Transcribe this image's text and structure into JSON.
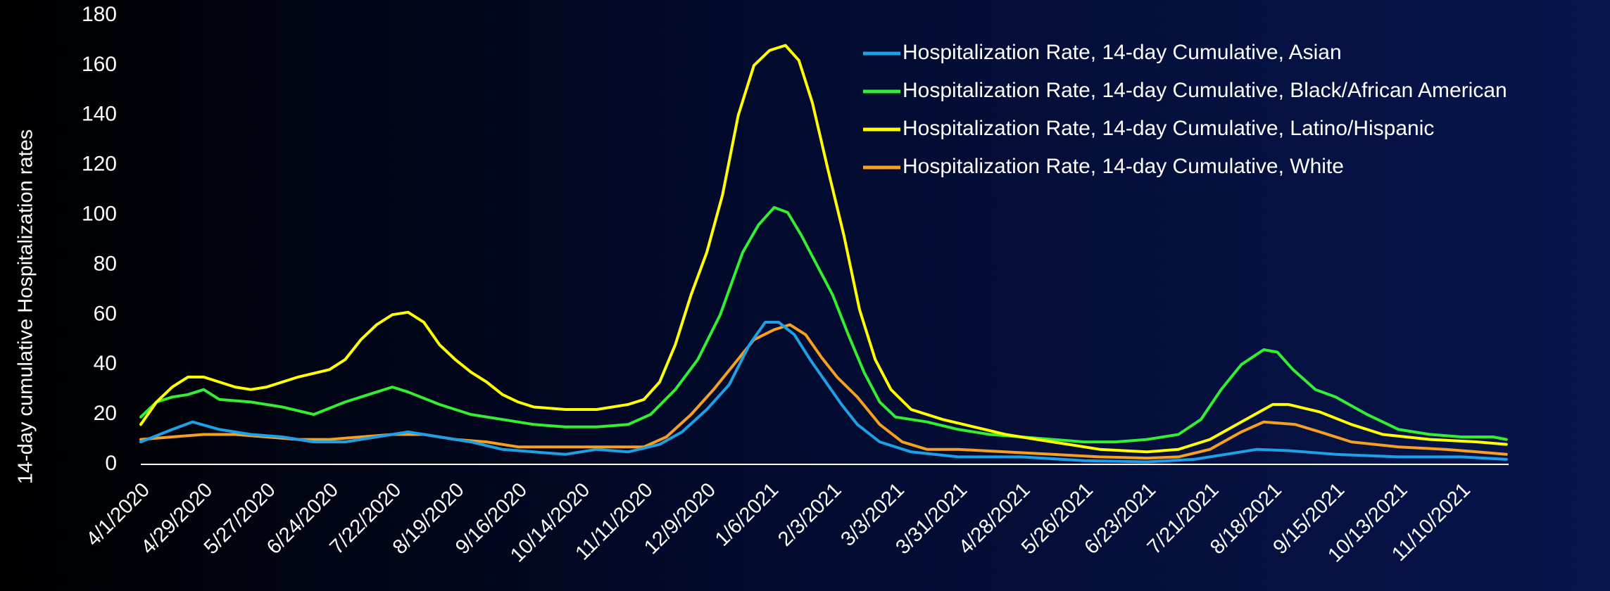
{
  "chart_data": {
    "type": "line",
    "title": "",
    "xlabel": "",
    "ylabel": "14-day cumulative Hospitalization rates",
    "ylim": [
      0,
      180
    ],
    "yticks": [
      0,
      20,
      40,
      60,
      80,
      100,
      120,
      140,
      160,
      180
    ],
    "xlim": [
      "2020-04-01",
      "2021-12-01"
    ],
    "x_tick_labels": [
      "4/1/2020",
      "4/29/2020",
      "5/27/2020",
      "6/24/2020",
      "7/22/2020",
      "8/19/2020",
      "9/16/2020",
      "10/14/2020",
      "11/11/2020",
      "12/9/2020",
      "1/6/2021",
      "2/3/2021",
      "3/3/2021",
      "3/31/2021",
      "4/28/2021",
      "5/26/2021",
      "6/23/2021",
      "7/21/2021",
      "8/18/2021",
      "9/15/2021",
      "10/13/2021",
      "11/10/2021"
    ],
    "x_tick_dates": [
      "2020-04-01",
      "2020-04-29",
      "2020-05-27",
      "2020-06-24",
      "2020-07-22",
      "2020-08-19",
      "2020-09-16",
      "2020-10-14",
      "2020-11-11",
      "2020-12-09",
      "2021-01-06",
      "2021-02-03",
      "2021-03-03",
      "2021-03-31",
      "2021-04-28",
      "2021-05-26",
      "2021-06-23",
      "2021-07-21",
      "2021-08-18",
      "2021-09-15",
      "2021-10-13",
      "2021-11-10"
    ],
    "grid": false,
    "legend_position": "top-right",
    "series": [
      {
        "name": "Hospitalization Rate, 14-day Cumulative, Asian",
        "color": "#1ea0e6",
        "points": [
          [
            "2020-04-01",
            9
          ],
          [
            "2020-04-15",
            14
          ],
          [
            "2020-04-24",
            17
          ],
          [
            "2020-05-06",
            14
          ],
          [
            "2020-05-20",
            12
          ],
          [
            "2020-06-03",
            11
          ],
          [
            "2020-06-17",
            9
          ],
          [
            "2020-07-01",
            9
          ],
          [
            "2020-07-15",
            11
          ],
          [
            "2020-07-29",
            13
          ],
          [
            "2020-08-12",
            11
          ],
          [
            "2020-08-26",
            9
          ],
          [
            "2020-09-09",
            6
          ],
          [
            "2020-09-23",
            5
          ],
          [
            "2020-10-07",
            4
          ],
          [
            "2020-10-21",
            6
          ],
          [
            "2020-11-04",
            5
          ],
          [
            "2020-11-18",
            8
          ],
          [
            "2020-11-28",
            13
          ],
          [
            "2020-12-09",
            22
          ],
          [
            "2020-12-19",
            32
          ],
          [
            "2020-12-28",
            48
          ],
          [
            "2021-01-04",
            57
          ],
          [
            "2021-01-10",
            57
          ],
          [
            "2021-01-17",
            52
          ],
          [
            "2021-01-24",
            42
          ],
          [
            "2021-01-31",
            33
          ],
          [
            "2021-02-07",
            24
          ],
          [
            "2021-02-14",
            16
          ],
          [
            "2021-02-24",
            9
          ],
          [
            "2021-03-10",
            5
          ],
          [
            "2021-03-31",
            3
          ],
          [
            "2021-04-28",
            3
          ],
          [
            "2021-05-26",
            1.5
          ],
          [
            "2021-06-23",
            1
          ],
          [
            "2021-07-14",
            2
          ],
          [
            "2021-07-28",
            4
          ],
          [
            "2021-08-11",
            6
          ],
          [
            "2021-08-25",
            5.5
          ],
          [
            "2021-09-15",
            4
          ],
          [
            "2021-10-13",
            3
          ],
          [
            "2021-11-10",
            3
          ],
          [
            "2021-11-30",
            2
          ]
        ]
      },
      {
        "name": "Hospitalization Rate, 14-day Cumulative, Black/African American",
        "color": "#33ee33",
        "points": [
          [
            "2020-04-01",
            19
          ],
          [
            "2020-04-08",
            25
          ],
          [
            "2020-04-15",
            27
          ],
          [
            "2020-04-22",
            28
          ],
          [
            "2020-04-29",
            30
          ],
          [
            "2020-05-06",
            26
          ],
          [
            "2020-05-20",
            25
          ],
          [
            "2020-06-03",
            23
          ],
          [
            "2020-06-17",
            20
          ],
          [
            "2020-07-01",
            25
          ],
          [
            "2020-07-15",
            29
          ],
          [
            "2020-07-22",
            31
          ],
          [
            "2020-07-29",
            29
          ],
          [
            "2020-08-12",
            24
          ],
          [
            "2020-08-26",
            20
          ],
          [
            "2020-09-09",
            18
          ],
          [
            "2020-09-23",
            16
          ],
          [
            "2020-10-07",
            15
          ],
          [
            "2020-10-21",
            15
          ],
          [
            "2020-11-04",
            16
          ],
          [
            "2020-11-14",
            20
          ],
          [
            "2020-11-25",
            30
          ],
          [
            "2020-12-05",
            42
          ],
          [
            "2020-12-15",
            60
          ],
          [
            "2020-12-25",
            85
          ],
          [
            "2021-01-01",
            96
          ],
          [
            "2021-01-08",
            103
          ],
          [
            "2021-01-14",
            101
          ],
          [
            "2021-01-20",
            92
          ],
          [
            "2021-01-27",
            80
          ],
          [
            "2021-02-03",
            68
          ],
          [
            "2021-02-10",
            52
          ],
          [
            "2021-02-17",
            37
          ],
          [
            "2021-02-24",
            25
          ],
          [
            "2021-03-03",
            19
          ],
          [
            "2021-03-17",
            17
          ],
          [
            "2021-03-31",
            14
          ],
          [
            "2021-04-14",
            12
          ],
          [
            "2021-04-28",
            11
          ],
          [
            "2021-05-12",
            10
          ],
          [
            "2021-05-26",
            9
          ],
          [
            "2021-06-09",
            9
          ],
          [
            "2021-06-23",
            10
          ],
          [
            "2021-07-07",
            12
          ],
          [
            "2021-07-17",
            18
          ],
          [
            "2021-07-26",
            30
          ],
          [
            "2021-08-04",
            40
          ],
          [
            "2021-08-14",
            46
          ],
          [
            "2021-08-20",
            45
          ],
          [
            "2021-08-27",
            38
          ],
          [
            "2021-09-06",
            30
          ],
          [
            "2021-09-15",
            27
          ],
          [
            "2021-09-29",
            20
          ],
          [
            "2021-10-13",
            14
          ],
          [
            "2021-10-27",
            12
          ],
          [
            "2021-11-10",
            11
          ],
          [
            "2021-11-24",
            11
          ],
          [
            "2021-11-30",
            10
          ]
        ]
      },
      {
        "name": "Hospitalization Rate, 14-day Cumulative, Latino/Hispanic",
        "color": "#ffff00",
        "points": [
          [
            "2020-04-01",
            16
          ],
          [
            "2020-04-08",
            25
          ],
          [
            "2020-04-15",
            31
          ],
          [
            "2020-04-22",
            35
          ],
          [
            "2020-04-29",
            35
          ],
          [
            "2020-05-06",
            33
          ],
          [
            "2020-05-13",
            31
          ],
          [
            "2020-05-20",
            30
          ],
          [
            "2020-05-27",
            31
          ],
          [
            "2020-06-10",
            35
          ],
          [
            "2020-06-24",
            38
          ],
          [
            "2020-07-01",
            42
          ],
          [
            "2020-07-08",
            50
          ],
          [
            "2020-07-15",
            56
          ],
          [
            "2020-07-22",
            60
          ],
          [
            "2020-07-29",
            61
          ],
          [
            "2020-08-05",
            57
          ],
          [
            "2020-08-12",
            48
          ],
          [
            "2020-08-19",
            42
          ],
          [
            "2020-08-26",
            37
          ],
          [
            "2020-09-02",
            33
          ],
          [
            "2020-09-09",
            28
          ],
          [
            "2020-09-16",
            25
          ],
          [
            "2020-09-23",
            23
          ],
          [
            "2020-10-07",
            22
          ],
          [
            "2020-10-21",
            22
          ],
          [
            "2020-11-04",
            24
          ],
          [
            "2020-11-11",
            26
          ],
          [
            "2020-11-18",
            33
          ],
          [
            "2020-11-25",
            48
          ],
          [
            "2020-12-02",
            68
          ],
          [
            "2020-12-09",
            85
          ],
          [
            "2020-12-16",
            108
          ],
          [
            "2020-12-23",
            140
          ],
          [
            "2020-12-30",
            160
          ],
          [
            "2021-01-06",
            166
          ],
          [
            "2021-01-13",
            168
          ],
          [
            "2021-01-19",
            162
          ],
          [
            "2021-01-25",
            145
          ],
          [
            "2021-02-01",
            118
          ],
          [
            "2021-02-08",
            92
          ],
          [
            "2021-02-15",
            62
          ],
          [
            "2021-02-22",
            42
          ],
          [
            "2021-03-01",
            30
          ],
          [
            "2021-03-10",
            22
          ],
          [
            "2021-03-24",
            18
          ],
          [
            "2021-04-07",
            15
          ],
          [
            "2021-04-21",
            12
          ],
          [
            "2021-05-05",
            10
          ],
          [
            "2021-05-19",
            8
          ],
          [
            "2021-06-02",
            6
          ],
          [
            "2021-06-23",
            5
          ],
          [
            "2021-07-07",
            6
          ],
          [
            "2021-07-21",
            10
          ],
          [
            "2021-08-04",
            17
          ],
          [
            "2021-08-18",
            24
          ],
          [
            "2021-08-25",
            24
          ],
          [
            "2021-09-08",
            21
          ],
          [
            "2021-09-22",
            16
          ],
          [
            "2021-10-06",
            12
          ],
          [
            "2021-10-27",
            10
          ],
          [
            "2021-11-17",
            9
          ],
          [
            "2021-11-30",
            8
          ]
        ]
      },
      {
        "name": "Hospitalization Rate, 14-day Cumulative, White",
        "color": "#f5a020",
        "points": [
          [
            "2020-04-01",
            10
          ],
          [
            "2020-04-15",
            11
          ],
          [
            "2020-04-29",
            12
          ],
          [
            "2020-05-13",
            12
          ],
          [
            "2020-05-27",
            11
          ],
          [
            "2020-06-10",
            10
          ],
          [
            "2020-06-24",
            10
          ],
          [
            "2020-07-08",
            11
          ],
          [
            "2020-07-22",
            12
          ],
          [
            "2020-08-05",
            12
          ],
          [
            "2020-08-19",
            10
          ],
          [
            "2020-09-02",
            9
          ],
          [
            "2020-09-16",
            7
          ],
          [
            "2020-09-30",
            7
          ],
          [
            "2020-10-14",
            7
          ],
          [
            "2020-10-28",
            7
          ],
          [
            "2020-11-11",
            7
          ],
          [
            "2020-11-21",
            11
          ],
          [
            "2020-12-02",
            20
          ],
          [
            "2020-12-12",
            30
          ],
          [
            "2020-12-21",
            40
          ],
          [
            "2020-12-30",
            50
          ],
          [
            "2021-01-08",
            54
          ],
          [
            "2021-01-15",
            56
          ],
          [
            "2021-01-22",
            52
          ],
          [
            "2021-01-29",
            43
          ],
          [
            "2021-02-05",
            35
          ],
          [
            "2021-02-14",
            27
          ],
          [
            "2021-02-24",
            16
          ],
          [
            "2021-03-06",
            9
          ],
          [
            "2021-03-17",
            6
          ],
          [
            "2021-03-31",
            6
          ],
          [
            "2021-04-21",
            5
          ],
          [
            "2021-05-12",
            4
          ],
          [
            "2021-06-02",
            3
          ],
          [
            "2021-06-23",
            2.5
          ],
          [
            "2021-07-07",
            3
          ],
          [
            "2021-07-21",
            6
          ],
          [
            "2021-08-04",
            13
          ],
          [
            "2021-08-14",
            17
          ],
          [
            "2021-08-28",
            16
          ],
          [
            "2021-09-08",
            13
          ],
          [
            "2021-09-22",
            9
          ],
          [
            "2021-10-13",
            7
          ],
          [
            "2021-11-03",
            6
          ],
          [
            "2021-11-17",
            5
          ],
          [
            "2021-11-30",
            4
          ]
        ]
      }
    ]
  }
}
